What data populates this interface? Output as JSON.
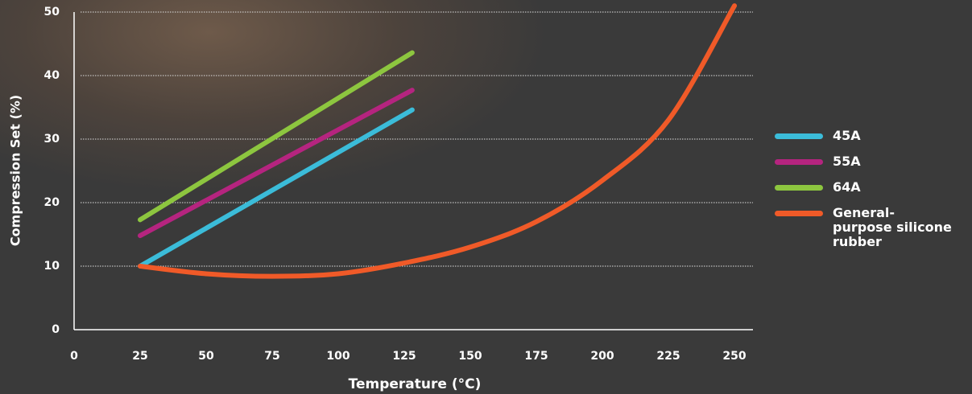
{
  "chart_data": {
    "type": "line",
    "x_label": "Temperature (°C)",
    "y_label": "Compression Set (%)",
    "xlim": [
      0,
      257
    ],
    "ylim": [
      0,
      50
    ],
    "xticks": [
      0,
      25,
      50,
      75,
      100,
      125,
      150,
      175,
      200,
      225,
      250
    ],
    "yticks": [
      0,
      10,
      20,
      30,
      40,
      50
    ],
    "grid": true,
    "legend": "right",
    "series": [
      {
        "name": "45A",
        "color": "#3bbcd9",
        "x": [
          25,
          128
        ],
        "values": [
          10,
          34.6
        ]
      },
      {
        "name": "55A",
        "color": "#b5247f",
        "x": [
          25,
          128
        ],
        "values": [
          14.8,
          37.7
        ]
      },
      {
        "name": "64A",
        "color": "#8dc63f",
        "x": [
          25,
          128
        ],
        "values": [
          17.3,
          43.6
        ]
      },
      {
        "name": "General-purpose silicone rubber",
        "color": "#f05a28",
        "x": [
          25,
          50,
          75,
          100,
          125,
          150,
          175,
          200,
          225,
          250
        ],
        "values": [
          10,
          8.8,
          8.4,
          8.8,
          10.5,
          13,
          17,
          23.5,
          33,
          51
        ]
      }
    ]
  }
}
